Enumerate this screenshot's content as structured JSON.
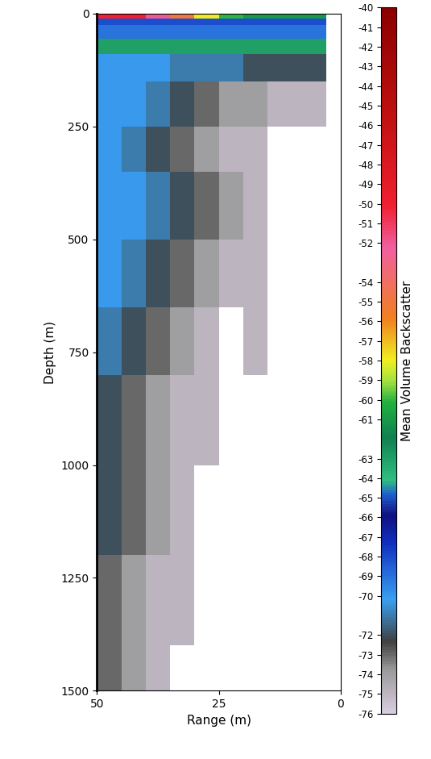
{
  "chart_data": {
    "type": "heatmap",
    "x_label": "Range (m)",
    "y_label": "Depth (m)",
    "xlim": [
      50,
      0
    ],
    "xticks": [
      50,
      25,
      0
    ],
    "ylim": [
      1500,
      0
    ],
    "yticks": [
      0,
      250,
      500,
      750,
      1000,
      1250,
      1500
    ],
    "range_edges": [
      50,
      45,
      40,
      35,
      30,
      25,
      20,
      15,
      10,
      5,
      3
    ],
    "depth_edges": [
      0,
      10,
      25,
      55,
      90,
      150,
      250,
      350,
      500,
      650,
      800,
      1000,
      1200,
      1400,
      1500
    ],
    "cells": [
      [
        -50,
        -50,
        -52,
        -55,
        -58,
        -60,
        -61,
        -61,
        -61,
        -61
      ],
      [
        -68,
        -68,
        -68,
        -68,
        -68,
        -68,
        -68,
        -68,
        -68,
        -68
      ],
      [
        -69,
        -69,
        -69,
        -69,
        -69,
        -69,
        -69,
        -69,
        -69,
        -69
      ],
      [
        -63,
        -63,
        -63,
        -63,
        -63,
        -63,
        -63,
        -63,
        -63,
        -63
      ],
      [
        -70,
        -70,
        -70,
        -71,
        -71,
        -71,
        -72,
        -72,
        -72,
        -72
      ],
      [
        -70,
        -70,
        -71,
        -72,
        -73,
        -74,
        -74,
        -75,
        -75,
        -75
      ],
      [
        -70,
        -71,
        -72,
        -73,
        -74,
        -75,
        -75,
        null,
        null,
        null
      ],
      [
        -70,
        -70,
        -71,
        -72,
        -73,
        -74,
        -75,
        null,
        null,
        null
      ],
      [
        -70,
        -71,
        -72,
        -73,
        -74,
        -75,
        -75,
        null,
        null,
        null
      ],
      [
        -71,
        -72,
        -73,
        -74,
        -75,
        null,
        -75,
        null,
        null,
        null
      ],
      [
        -72,
        -73,
        -74,
        -75,
        -75,
        null,
        null,
        null,
        null,
        null
      ],
      [
        -72,
        -73,
        -74,
        -75,
        null,
        null,
        null,
        null,
        null,
        null
      ],
      [
        -73,
        -74,
        -75,
        -75,
        null,
        null,
        null,
        null,
        null,
        null
      ],
      [
        -73,
        -74,
        -75,
        null,
        null,
        null,
        null,
        null,
        null,
        null
      ]
    ],
    "colorbar_label": "Mean Volume Backscatter",
    "colorbar_range": [
      -76,
      -40
    ],
    "colorbar_ticks": [
      -40,
      -41,
      -42,
      -43,
      -44,
      -45,
      -46,
      -47,
      -48,
      -49,
      -50,
      -51,
      -52,
      -54,
      -55,
      -56,
      -57,
      -58,
      -59,
      -60,
      -61,
      -63,
      -64,
      -65,
      -66,
      -67,
      -68,
      -69,
      -70,
      -72,
      -73,
      -74,
      -75,
      -76
    ]
  }
}
